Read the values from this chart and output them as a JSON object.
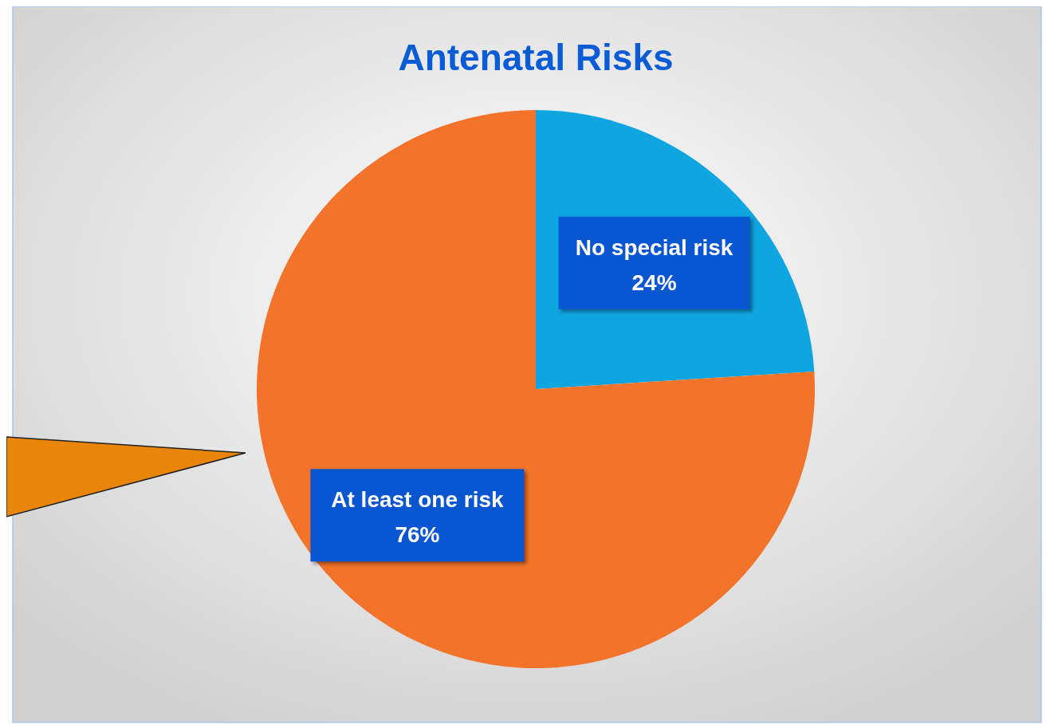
{
  "chart_data": {
    "type": "pie",
    "title": "Antenatal Risks",
    "categories": [
      "No special risk",
      "At least one risk"
    ],
    "values": [
      24,
      76
    ],
    "value_labels": [
      "24%",
      "76%"
    ],
    "colors": [
      "#0ea5e0",
      "#f4732a"
    ]
  }
}
